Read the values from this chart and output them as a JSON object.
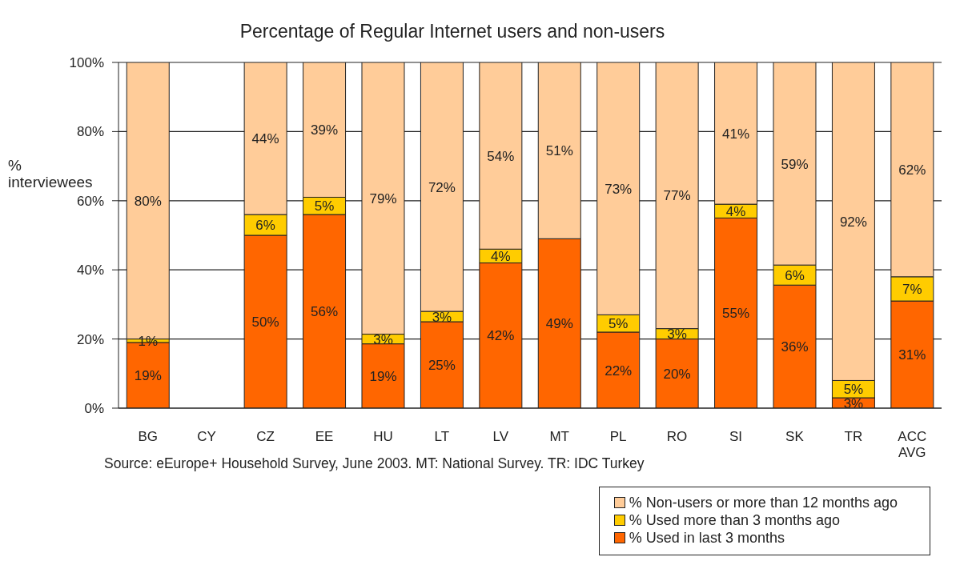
{
  "chart_data": {
    "type": "bar",
    "title": "Percentage of Regular Internet users and non-users",
    "ylabel": "% interviewees",
    "categories": [
      "BG",
      "CY",
      "CZ",
      "EE",
      "HU",
      "LT",
      "LV",
      "MT",
      "PL",
      "RO",
      "SI",
      "SK",
      "TR",
      "ACC AVG"
    ],
    "series": [
      {
        "name": "% Used in last 3 months",
        "color": "#ff6600",
        "values": [
          19,
          null,
          50,
          56,
          18.6,
          25,
          42,
          49,
          22,
          20,
          55,
          35.6,
          3,
          31
        ],
        "value_labels": [
          "19%",
          null,
          "50%",
          "56%",
          "19%",
          "25%",
          "42%",
          "49%",
          "22%",
          "20%",
          "55%",
          "36%",
          "3%",
          "31%"
        ]
      },
      {
        "name": "% Used more than 3 months ago",
        "color": "#ffcc00",
        "values": [
          1,
          null,
          6,
          5,
          2.8,
          3,
          4,
          null,
          5,
          3,
          4,
          5.8,
          5,
          7
        ],
        "value_labels": [
          "1%",
          null,
          "6%",
          "5%",
          "3%",
          "3%",
          "4%",
          null,
          "5%",
          "3%",
          "4%",
          "6%",
          "5%",
          "7%"
        ]
      },
      {
        "name": "% Non-users or more than 12 months ago",
        "color": "#ffcc99",
        "values": [
          80,
          null,
          44,
          39,
          78.6,
          72,
          54,
          51,
          73,
          77,
          41,
          58.6,
          92,
          62
        ],
        "value_labels": [
          "80%",
          null,
          "44%",
          "39%",
          "79%",
          "72%",
          "54%",
          "51%",
          "73%",
          "77%",
          "41%",
          "59%",
          "92%",
          "62%"
        ]
      }
    ],
    "stacked": true,
    "ylim": [
      0,
      100
    ],
    "yticks": [
      {
        "value": 0,
        "label": "0%"
      },
      {
        "value": 20,
        "label": "20%"
      },
      {
        "value": 40,
        "label": "40%"
      },
      {
        "value": 60,
        "label": "60%"
      },
      {
        "value": 80,
        "label": "80%"
      },
      {
        "value": 100,
        "label": "100%"
      }
    ],
    "grid": "y",
    "legend": "bottom right",
    "annotations": [
      "Source: eEurope+ Household Survey, June 2003. MT: National Survey. TR: IDC Turkey"
    ]
  }
}
